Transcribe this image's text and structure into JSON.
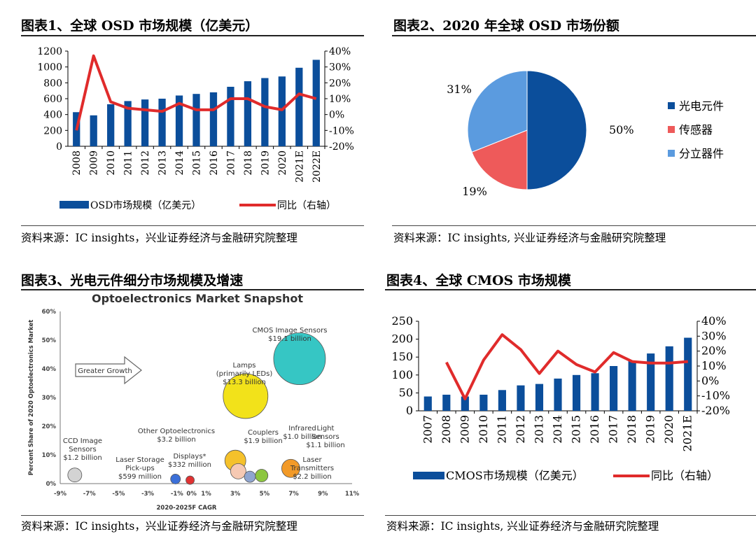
{
  "panels": {
    "p1": {
      "title": "图表1、全球 OSD 市场规模（亿美元）",
      "source": "资料来源：IC insights，兴业证券经济与金融研究院整理"
    },
    "p2": {
      "title": "图表2、2020 年全球 OSD 市场份额",
      "source": "资料来源：IC insights, 兴业证券经济与金融研究院整理"
    },
    "p3": {
      "title": "图表3、光电元件细分市场规模及增速",
      "source": "资料来源：IC insights，兴业证券经济与金融研究院整理"
    },
    "p4": {
      "title": "图表4、全球 CMOS 市场规模",
      "source": "资料来源：IC insights, 兴业证券经济与金融研究院整理"
    }
  },
  "chart_data": [
    {
      "type": "bar",
      "id": "osd",
      "categories": [
        "2008",
        "2009",
        "2010",
        "2011",
        "2012",
        "2013",
        "2014",
        "2015",
        "2016",
        "2017",
        "2018",
        "2019",
        "2020",
        "2021E",
        "2022E"
      ],
      "series": [
        {
          "name": "OSD市场规模（亿美元）",
          "type": "bar",
          "axis": "left",
          "color": "#0b4e9b",
          "values": [
            430,
            390,
            530,
            570,
            590,
            600,
            640,
            660,
            680,
            750,
            820,
            860,
            880,
            990,
            1090
          ]
        },
        {
          "name": "同比（右轴）",
          "type": "line",
          "axis": "right",
          "color": "#e02b2b",
          "values": [
            -10,
            37,
            8,
            4,
            3,
            2,
            7,
            3,
            3,
            10,
            10,
            5,
            3,
            13,
            10
          ]
        }
      ],
      "yticks_left": [
        "0",
        "200",
        "400",
        "600",
        "800",
        "1000",
        "1200"
      ],
      "yticks_right": [
        "-20%",
        "-10%",
        "0%",
        "10%",
        "20%",
        "30%",
        "40%"
      ],
      "ylim_left": [
        0,
        1200
      ],
      "ylim_right": [
        -20,
        40
      ]
    },
    {
      "type": "pie",
      "id": "share",
      "labels": [
        "光电元件",
        "传感器",
        "分立器件"
      ],
      "values": [
        50,
        19,
        31
      ],
      "value_labels": [
        "50%",
        "19%",
        "31%"
      ],
      "colors": [
        "#0b4e9b",
        "#ee5a5a",
        "#5b9bdf"
      ],
      "legend": "right"
    },
    {
      "type": "scatter",
      "id": "opto",
      "title": "Optoelectronics Market Snapshot",
      "xlabel": "2020-2025F CAGR",
      "ylabel": "Percent Share of 2020 Optoelectronics Market",
      "xticks": [
        "-9%",
        "-7%",
        "-5%",
        "-3%",
        "-1%",
        "0%",
        "1%",
        "3%",
        "5%",
        "7%",
        "9%",
        "11%"
      ],
      "yticks": [
        "0%",
        "10%",
        "20%",
        "30%",
        "40%",
        "50%",
        "60%"
      ],
      "annotation": "Greater Growth",
      "bubbles": [
        {
          "l1": "CMOS Image Sensors",
          "l2": "$19.1 billion",
          "x": 7.4,
          "y": 43.5,
          "color": "#36c6c4"
        },
        {
          "l0": "Lamps",
          "l1": "(primarily LEDs)",
          "l2": "$13.3 billion",
          "x": 3.7,
          "y": 30.5,
          "color": "#f2e21a"
        },
        {
          "l1": "Other Optoelectronics",
          "l2": "$3.2 billion",
          "x": 3.0,
          "y": 8.0,
          "color": "#f5c12b"
        },
        {
          "l1": "Couplers",
          "l2": "$1.9 billion",
          "x": 3.2,
          "y": 4.3,
          "color": "#f6c9b3"
        },
        {
          "l1": "Infrared",
          "l2": "$1.0 billion",
          "x": 4.0,
          "y": 2.4,
          "color": "#8fa5d0"
        },
        {
          "l0": "Light",
          "l1": "Sensors",
          "l2": "$1.1 billion",
          "x": 4.8,
          "y": 2.8,
          "color": "#8cc63f"
        },
        {
          "l1": "Laser",
          "l2": "Transmitters",
          "l3": "$2.2 billion",
          "x": 6.8,
          "y": 5.3,
          "color": "#f29a28"
        },
        {
          "l0": "CCD Image",
          "l1": "Sensors",
          "l2": "$1.2 billion",
          "x": -8.0,
          "y": 3.0,
          "color": "#d3d3d3"
        },
        {
          "l1": "Laser Storage",
          "l2": "Pick-ups",
          "l3": "$599 million",
          "x": -1.1,
          "y": 1.6,
          "color": "#3b6fd8"
        },
        {
          "l1": "Displays*",
          "l2": "$332 million",
          "x": -0.1,
          "y": 1.2,
          "color": "#e03232"
        }
      ]
    },
    {
      "type": "bar",
      "id": "cmos",
      "categories": [
        "2007",
        "2008",
        "2009",
        "2010",
        "2011",
        "2012",
        "2013",
        "2014",
        "2015",
        "2016",
        "2017",
        "2018",
        "2019",
        "2020",
        "2021E"
      ],
      "series": [
        {
          "name": "CMOS市场规模（亿美元）",
          "type": "bar",
          "axis": "left",
          "color": "#0b4e9b",
          "values": [
            40,
            45,
            40,
            45,
            58,
            71,
            75,
            90,
            100,
            105,
            125,
            140,
            160,
            180,
            204
          ]
        },
        {
          "name": "同比（右轴）",
          "type": "line",
          "axis": "right",
          "color": "#e02b2b",
          "values": [
            null,
            12.5,
            -12,
            14,
            31,
            21,
            5,
            20,
            11,
            6,
            19,
            13,
            12,
            12,
            13
          ]
        }
      ],
      "yticks_left": [
        "0",
        "50",
        "100",
        "150",
        "200",
        "250"
      ],
      "yticks_right": [
        "-20%",
        "-10%",
        "0%",
        "10%",
        "20%",
        "30%",
        "40%"
      ],
      "ylim_left": [
        0,
        250
      ],
      "ylim_right": [
        -20,
        40
      ]
    }
  ]
}
